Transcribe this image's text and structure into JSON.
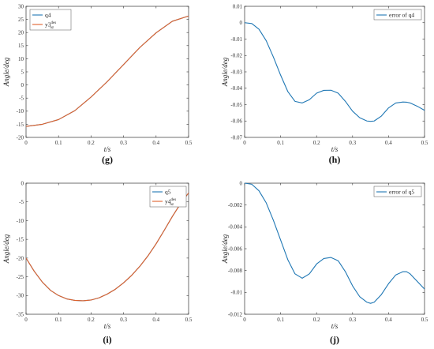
{
  "colors": {
    "blue": "#1f77b4",
    "orange": "#e0622c",
    "axis": "#333333"
  },
  "chart_data": [
    {
      "panel": "(g)",
      "type": "line",
      "xlabel": "t/s",
      "ylabel": "Angle/deg",
      "xlim": [
        0,
        0.5
      ],
      "ylim": [
        -20,
        30
      ],
      "xticks": [
        "0",
        "0.1",
        "0.2",
        "0.3",
        "0.4",
        "0.5"
      ],
      "yticks": [
        "-20",
        "-15",
        "-10",
        "-5",
        "0",
        "5",
        "10",
        "15",
        "20",
        "25",
        "30"
      ],
      "legend_position": "top-left",
      "x": [
        0,
        0.05,
        0.1,
        0.15,
        0.2,
        0.25,
        0.3,
        0.35,
        0.4,
        0.45,
        0.5
      ],
      "series": [
        {
          "name": "q4",
          "color": "blue",
          "values": [
            -15.8,
            -15.0,
            -13.2,
            -9.8,
            -4.6,
            1.3,
            7.8,
            14.3,
            19.9,
            24.3,
            26.3
          ]
        },
        {
          "name": "y3",
          "name_sup": "des",
          "name_sub": "nz",
          "color": "orange",
          "values": [
            -15.8,
            -15.0,
            -13.2,
            -9.8,
            -4.6,
            1.3,
            7.8,
            14.3,
            19.9,
            24.3,
            26.3
          ]
        }
      ]
    },
    {
      "panel": "(h)",
      "type": "line",
      "xlabel": "t/s",
      "ylabel": "Angle/deg",
      "xlim": [
        0,
        0.5
      ],
      "ylim": [
        -0.07,
        0.01
      ],
      "xticks": [
        "0",
        "0.1",
        "0.2",
        "0.3",
        "0.4",
        "0.5"
      ],
      "yticks": [
        "-0.07",
        "-0.06",
        "-0.05",
        "-0.04",
        "-0.03",
        "-0.02",
        "-0.01",
        "0",
        "0.01"
      ],
      "legend_position": "top-right",
      "x": [
        0,
        0.02,
        0.04,
        0.06,
        0.08,
        0.1,
        0.12,
        0.14,
        0.16,
        0.18,
        0.2,
        0.22,
        0.24,
        0.26,
        0.28,
        0.3,
        0.32,
        0.34,
        0.35,
        0.36,
        0.38,
        0.4,
        0.42,
        0.44,
        0.45,
        0.46,
        0.48,
        0.5
      ],
      "series": [
        {
          "name": "error of q4",
          "color": "blue",
          "values": [
            0,
            -0.0005,
            -0.004,
            -0.011,
            -0.021,
            -0.032,
            -0.042,
            -0.048,
            -0.049,
            -0.047,
            -0.043,
            -0.0413,
            -0.0412,
            -0.043,
            -0.048,
            -0.054,
            -0.058,
            -0.06,
            -0.0602,
            -0.06,
            -0.057,
            -0.052,
            -0.049,
            -0.0484,
            -0.0485,
            -0.049,
            -0.051,
            -0.0535
          ]
        }
      ]
    },
    {
      "panel": "(i)",
      "type": "line",
      "xlabel": "t/s",
      "ylabel": "Angle/deg",
      "xlim": [
        0,
        0.5
      ],
      "ylim": [
        -35,
        0
      ],
      "xticks": [
        "0",
        "0.1",
        "0.2",
        "0.3",
        "0.4",
        "0.5"
      ],
      "yticks": [
        "-35",
        "-30",
        "-25",
        "-20",
        "-15",
        "-10",
        "-5",
        "0"
      ],
      "legend_position": "top-right",
      "x": [
        0,
        0.025,
        0.05,
        0.075,
        0.1,
        0.125,
        0.15,
        0.175,
        0.2,
        0.225,
        0.25,
        0.275,
        0.3,
        0.325,
        0.35,
        0.375,
        0.4,
        0.425,
        0.45,
        0.475,
        0.5
      ],
      "series": [
        {
          "name": "q5",
          "color": "blue",
          "values": [
            -20.0,
            -23.5,
            -26.4,
            -28.6,
            -30.0,
            -30.9,
            -31.3,
            -31.4,
            -31.2,
            -30.6,
            -29.6,
            -28.3,
            -26.6,
            -24.6,
            -22.2,
            -19.4,
            -16.2,
            -12.6,
            -8.9,
            -5.5,
            -2.6
          ]
        },
        {
          "name": "y4",
          "name_sup": "des",
          "name_sub": "nz",
          "color": "orange",
          "values": [
            -20.0,
            -23.5,
            -26.4,
            -28.6,
            -30.0,
            -30.9,
            -31.3,
            -31.4,
            -31.2,
            -30.6,
            -29.6,
            -28.3,
            -26.6,
            -24.6,
            -22.2,
            -19.4,
            -16.2,
            -12.6,
            -8.9,
            -5.5,
            -2.6
          ]
        }
      ]
    },
    {
      "panel": "(j)",
      "type": "line",
      "xlabel": "t/s",
      "ylabel": "Angle/deg",
      "xlim": [
        0,
        0.5
      ],
      "ylim": [
        -0.012,
        0
      ],
      "xticks": [
        "0",
        "0.1",
        "0.2",
        "0.3",
        "0.4",
        "0.5"
      ],
      "yticks": [
        "-0.012",
        "-0.01",
        "-0.008",
        "-0.006",
        "-0.004",
        "-0.002",
        "0"
      ],
      "legend_position": "top-right",
      "x": [
        0,
        0.02,
        0.04,
        0.06,
        0.08,
        0.1,
        0.12,
        0.14,
        0.16,
        0.18,
        0.2,
        0.22,
        0.24,
        0.26,
        0.28,
        0.3,
        0.32,
        0.34,
        0.35,
        0.36,
        0.38,
        0.4,
        0.42,
        0.44,
        0.45,
        0.46,
        0.48,
        0.5
      ],
      "series": [
        {
          "name": "error of q5",
          "color": "blue",
          "values": [
            0,
            -0.0001,
            -0.0007,
            -0.0018,
            -0.0034,
            -0.0052,
            -0.007,
            -0.0083,
            -0.0087,
            -0.0083,
            -0.0074,
            -0.0069,
            -0.0068,
            -0.0071,
            -0.0081,
            -0.0094,
            -0.0104,
            -0.0109,
            -0.011,
            -0.0109,
            -0.0102,
            -0.0092,
            -0.0084,
            -0.0081,
            -0.0081,
            -0.0083,
            -0.009,
            -0.0097
          ]
        }
      ]
    }
  ]
}
